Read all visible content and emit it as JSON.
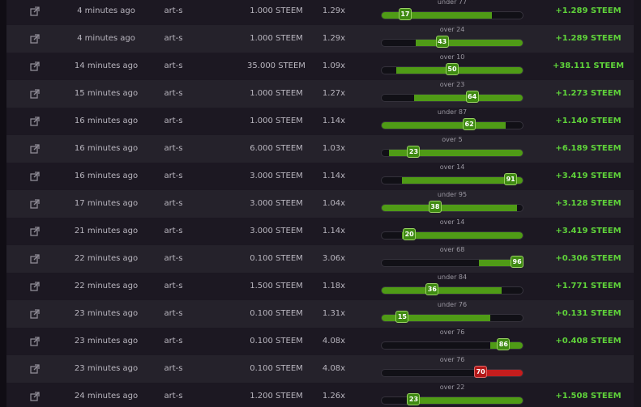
{
  "colors": {
    "win": "#5fd33a",
    "bar_green": "#4f9b16",
    "bar_red": "#c51d1d"
  },
  "icons": {
    "link": "external-link-icon"
  },
  "bets": [
    {
      "time": "4 minutes ago",
      "user": "art-s",
      "amount": "1.000 STEEM",
      "multiplier": "1.29x",
      "target": "under 77",
      "roll": "17",
      "win": true,
      "payout": "+1.289 STEEM"
    },
    {
      "time": "4 minutes ago",
      "user": "art-s",
      "amount": "1.000 STEEM",
      "multiplier": "1.29x",
      "target": "over 24",
      "roll": "43",
      "win": true,
      "payout": "+1.289 STEEM"
    },
    {
      "time": "14 minutes ago",
      "user": "art-s",
      "amount": "35.000 STEEM",
      "multiplier": "1.09x",
      "target": "over 10",
      "roll": "50",
      "win": true,
      "payout": "+38.111 STEEM"
    },
    {
      "time": "15 minutes ago",
      "user": "art-s",
      "amount": "1.000 STEEM",
      "multiplier": "1.27x",
      "target": "over 23",
      "roll": "64",
      "win": true,
      "payout": "+1.273 STEEM"
    },
    {
      "time": "16 minutes ago",
      "user": "art-s",
      "amount": "1.000 STEEM",
      "multiplier": "1.14x",
      "target": "under 87",
      "roll": "62",
      "win": true,
      "payout": "+1.140 STEEM"
    },
    {
      "time": "16 minutes ago",
      "user": "art-s",
      "amount": "6.000 STEEM",
      "multiplier": "1.03x",
      "target": "over 5",
      "roll": "23",
      "win": true,
      "payout": "+6.189 STEEM"
    },
    {
      "time": "16 minutes ago",
      "user": "art-s",
      "amount": "3.000 STEEM",
      "multiplier": "1.14x",
      "target": "over 14",
      "roll": "91",
      "win": true,
      "payout": "+3.419 STEEM"
    },
    {
      "time": "17 minutes ago",
      "user": "art-s",
      "amount": "3.000 STEEM",
      "multiplier": "1.04x",
      "target": "under 95",
      "roll": "38",
      "win": true,
      "payout": "+3.128 STEEM"
    },
    {
      "time": "21 minutes ago",
      "user": "art-s",
      "amount": "3.000 STEEM",
      "multiplier": "1.14x",
      "target": "over 14",
      "roll": "20",
      "win": true,
      "payout": "+3.419 STEEM"
    },
    {
      "time": "22 minutes ago",
      "user": "art-s",
      "amount": "0.100 STEEM",
      "multiplier": "3.06x",
      "target": "over 68",
      "roll": "96",
      "win": true,
      "payout": "+0.306 STEEM"
    },
    {
      "time": "22 minutes ago",
      "user": "art-s",
      "amount": "1.500 STEEM",
      "multiplier": "1.18x",
      "target": "under 84",
      "roll": "36",
      "win": true,
      "payout": "+1.771 STEEM"
    },
    {
      "time": "23 minutes ago",
      "user": "art-s",
      "amount": "0.100 STEEM",
      "multiplier": "1.31x",
      "target": "under 76",
      "roll": "15",
      "win": true,
      "payout": "+0.131 STEEM"
    },
    {
      "time": "23 minutes ago",
      "user": "art-s",
      "amount": "0.100 STEEM",
      "multiplier": "4.08x",
      "target": "over 76",
      "roll": "86",
      "win": true,
      "payout": "+0.408 STEEM"
    },
    {
      "time": "23 minutes ago",
      "user": "art-s",
      "amount": "0.100 STEEM",
      "multiplier": "4.08x",
      "target": "over 76",
      "roll": "70",
      "win": false,
      "payout": ""
    },
    {
      "time": "24 minutes ago",
      "user": "art-s",
      "amount": "1.200 STEEM",
      "multiplier": "1.26x",
      "target": "over 22",
      "roll": "23",
      "win": true,
      "payout": "+1.508 STEEM"
    }
  ]
}
